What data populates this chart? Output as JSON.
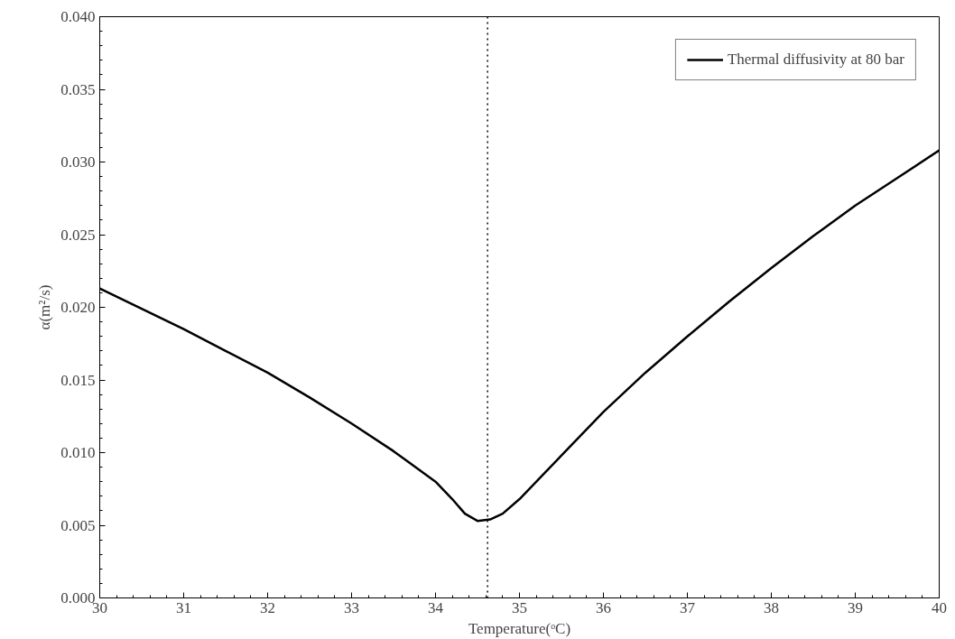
{
  "chart_data": {
    "type": "line",
    "xlabel": "Temperature(ᵒC)",
    "ylabel": "α(m²/s)",
    "x": [
      30,
      30.5,
      31,
      31.5,
      32,
      32.5,
      33,
      33.5,
      34,
      34.2,
      34.35,
      34.5,
      34.65,
      34.8,
      35,
      35.25,
      35.5,
      36,
      36.5,
      37,
      37.5,
      38,
      38.5,
      39,
      39.5,
      40
    ],
    "series": [
      {
        "name": "Thermal diffusivity at 80 bar",
        "color": "#000000",
        "values": [
          0.0213,
          0.0199,
          0.0185,
          0.017,
          0.0155,
          0.0138,
          0.012,
          0.0101,
          0.008,
          0.0068,
          0.0058,
          0.0053,
          0.0054,
          0.0058,
          0.0068,
          0.0083,
          0.0098,
          0.0128,
          0.0155,
          0.018,
          0.0204,
          0.0227,
          0.0249,
          0.027,
          0.0289,
          0.0308
        ]
      }
    ],
    "xlim": [
      30,
      40
    ],
    "ylim": [
      0,
      0.04
    ],
    "xticks": [
      30,
      31,
      32,
      33,
      34,
      35,
      36,
      37,
      38,
      39,
      40
    ],
    "yticks": [
      {
        "value": 0,
        "label": "0.000"
      },
      {
        "value": 0.005,
        "label": "0.005"
      },
      {
        "value": 0.01,
        "label": "0.010"
      },
      {
        "value": 0.015,
        "label": "0.015"
      },
      {
        "value": 0.02,
        "label": "0.020"
      },
      {
        "value": 0.025,
        "label": "0.025"
      },
      {
        "value": 0.03,
        "label": "0.030"
      },
      {
        "value": 0.035,
        "label": "0.035"
      },
      {
        "value": 0.04,
        "label": "0.040"
      }
    ],
    "ref_lines": [
      {
        "axis": "x",
        "value": 34.62,
        "label": null,
        "color": "#000000",
        "line_style": "dotted"
      }
    ],
    "grid": false,
    "legend": "top right",
    "line_style": "solid",
    "marker": "none"
  }
}
